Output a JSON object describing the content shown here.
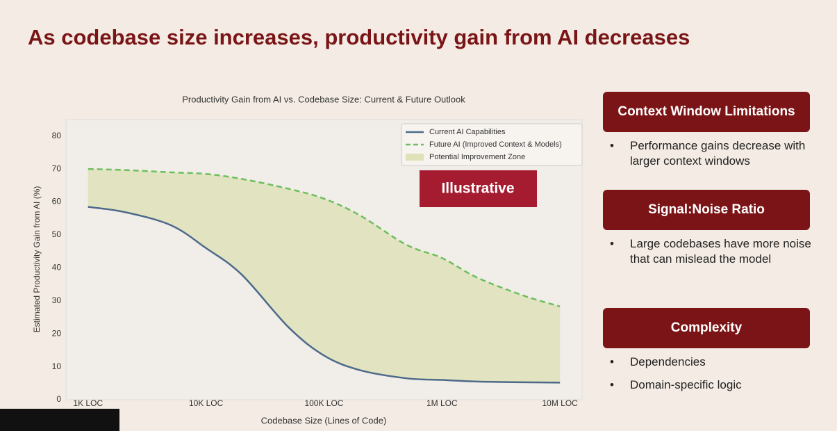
{
  "title": "As codebase size increases, productivity gain from AI decreases",
  "chart_data": {
    "type": "line",
    "title": "Productivity Gain from AI vs. Codebase Size: Current & Future Outlook",
    "x_label": "Codebase Size (Lines of Code)",
    "y_label": "Estimated Productivity Gain from AI (%)",
    "x_scale": "log",
    "x": [
      1000,
      2000,
      5000,
      10000,
      20000,
      50000,
      100000,
      200000,
      500000,
      1000000,
      2000000,
      5000000,
      10000000
    ],
    "series": [
      {
        "name": "Current AI Capabilities",
        "color": "#4d6a8a",
        "style": "solid",
        "values": [
          58.5,
          57,
          53,
          46,
          38,
          22,
          13.4,
          9,
          6.5,
          6,
          5.5,
          5.3,
          5.2
        ]
      },
      {
        "name": "Future AI (Improved Context & Models)",
        "color": "#6cbf5e",
        "style": "dashed",
        "values": [
          70,
          69.7,
          69,
          68.5,
          67,
          64,
          61,
          56,
          47,
          43,
          37,
          31.5,
          28.3
        ]
      }
    ],
    "fill": {
      "name": "Potential Improvement Zone",
      "color": "#dfe1b8"
    },
    "xlim": [
      650,
      15400000
    ],
    "xticks": [
      {
        "value": 1000,
        "label": "1K LOC"
      },
      {
        "value": 10000,
        "label": "10K LOC"
      },
      {
        "value": 100000,
        "label": "100K LOC"
      },
      {
        "value": 1000000,
        "label": "1M LOC"
      },
      {
        "value": 10000000,
        "label": "10M LOC"
      }
    ],
    "ylim": [
      0,
      85
    ],
    "yticks": [
      0,
      10,
      20,
      30,
      40,
      50,
      60,
      70,
      80
    ],
    "legend": "upper right",
    "grid": false
  },
  "badge": "Illustrative",
  "panels": [
    {
      "heading": "Context Window Limitations",
      "bullets": [
        "Performance gains decrease with larger context windows"
      ]
    },
    {
      "heading": "Signal:Noise Ratio",
      "bullets": [
        "Large codebases have more noise that can mislead the model"
      ]
    },
    {
      "heading": "Complexity",
      "bullets": [
        "Dependencies",
        "Domain-specific logic"
      ]
    }
  ]
}
